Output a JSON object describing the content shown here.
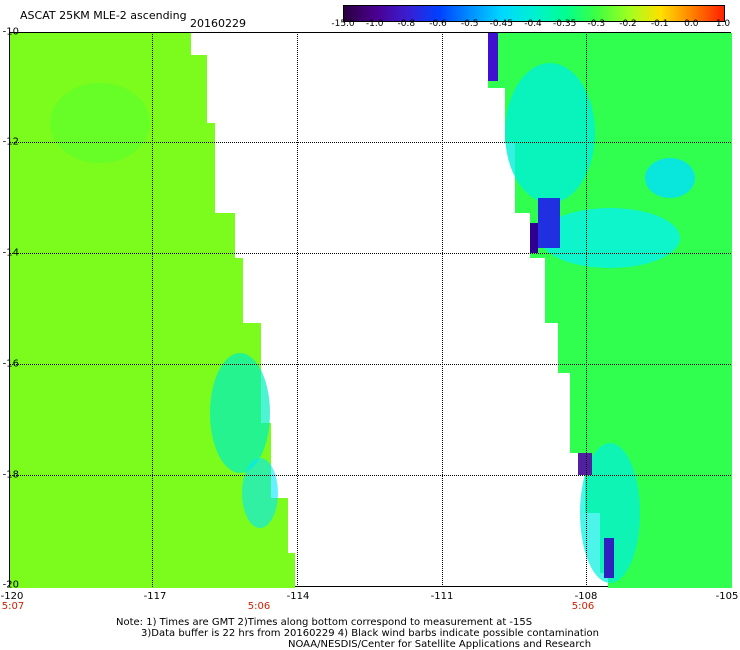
{
  "header": {
    "title": "ASCAT 25KM MLE-2 ascending",
    "date": "20160229"
  },
  "colorbar": {
    "ticks": [
      "-15.0",
      "-1.0",
      "-0.8",
      "-0.6",
      "-0.5",
      "-0.45",
      "-0.4",
      "-0.35",
      "-0.3",
      "-0.2",
      "-0.1",
      "0.0",
      "1.0"
    ],
    "colors": [
      "#2a0040",
      "#4a0090",
      "#3a1ed0",
      "#0040ff",
      "#0090ff",
      "#00d8ff",
      "#00f0d0",
      "#00ff90",
      "#40ff40",
      "#a0ff20",
      "#ffe000",
      "#ff8000",
      "#ff2000"
    ]
  },
  "map": {
    "lat_labels": [
      "-10",
      "-12",
      "-14",
      "-16",
      "-18",
      "-20"
    ],
    "lon_labels": [
      "-120",
      "-117",
      "-114",
      "-111",
      "-108",
      "-105"
    ],
    "time_labels": [
      "5:07",
      "5:06",
      "5:06"
    ]
  },
  "footer": {
    "line1": "Note: 1) Times are GMT 2)Times along bottom correspond to measurement at -15S",
    "line2": "3)Data buffer is 22 hrs from 20160229 4) Black wind barbs indicate possible contamination",
    "line3": "NOAA/NESDIS/Center for Satellite Applications and Research"
  }
}
